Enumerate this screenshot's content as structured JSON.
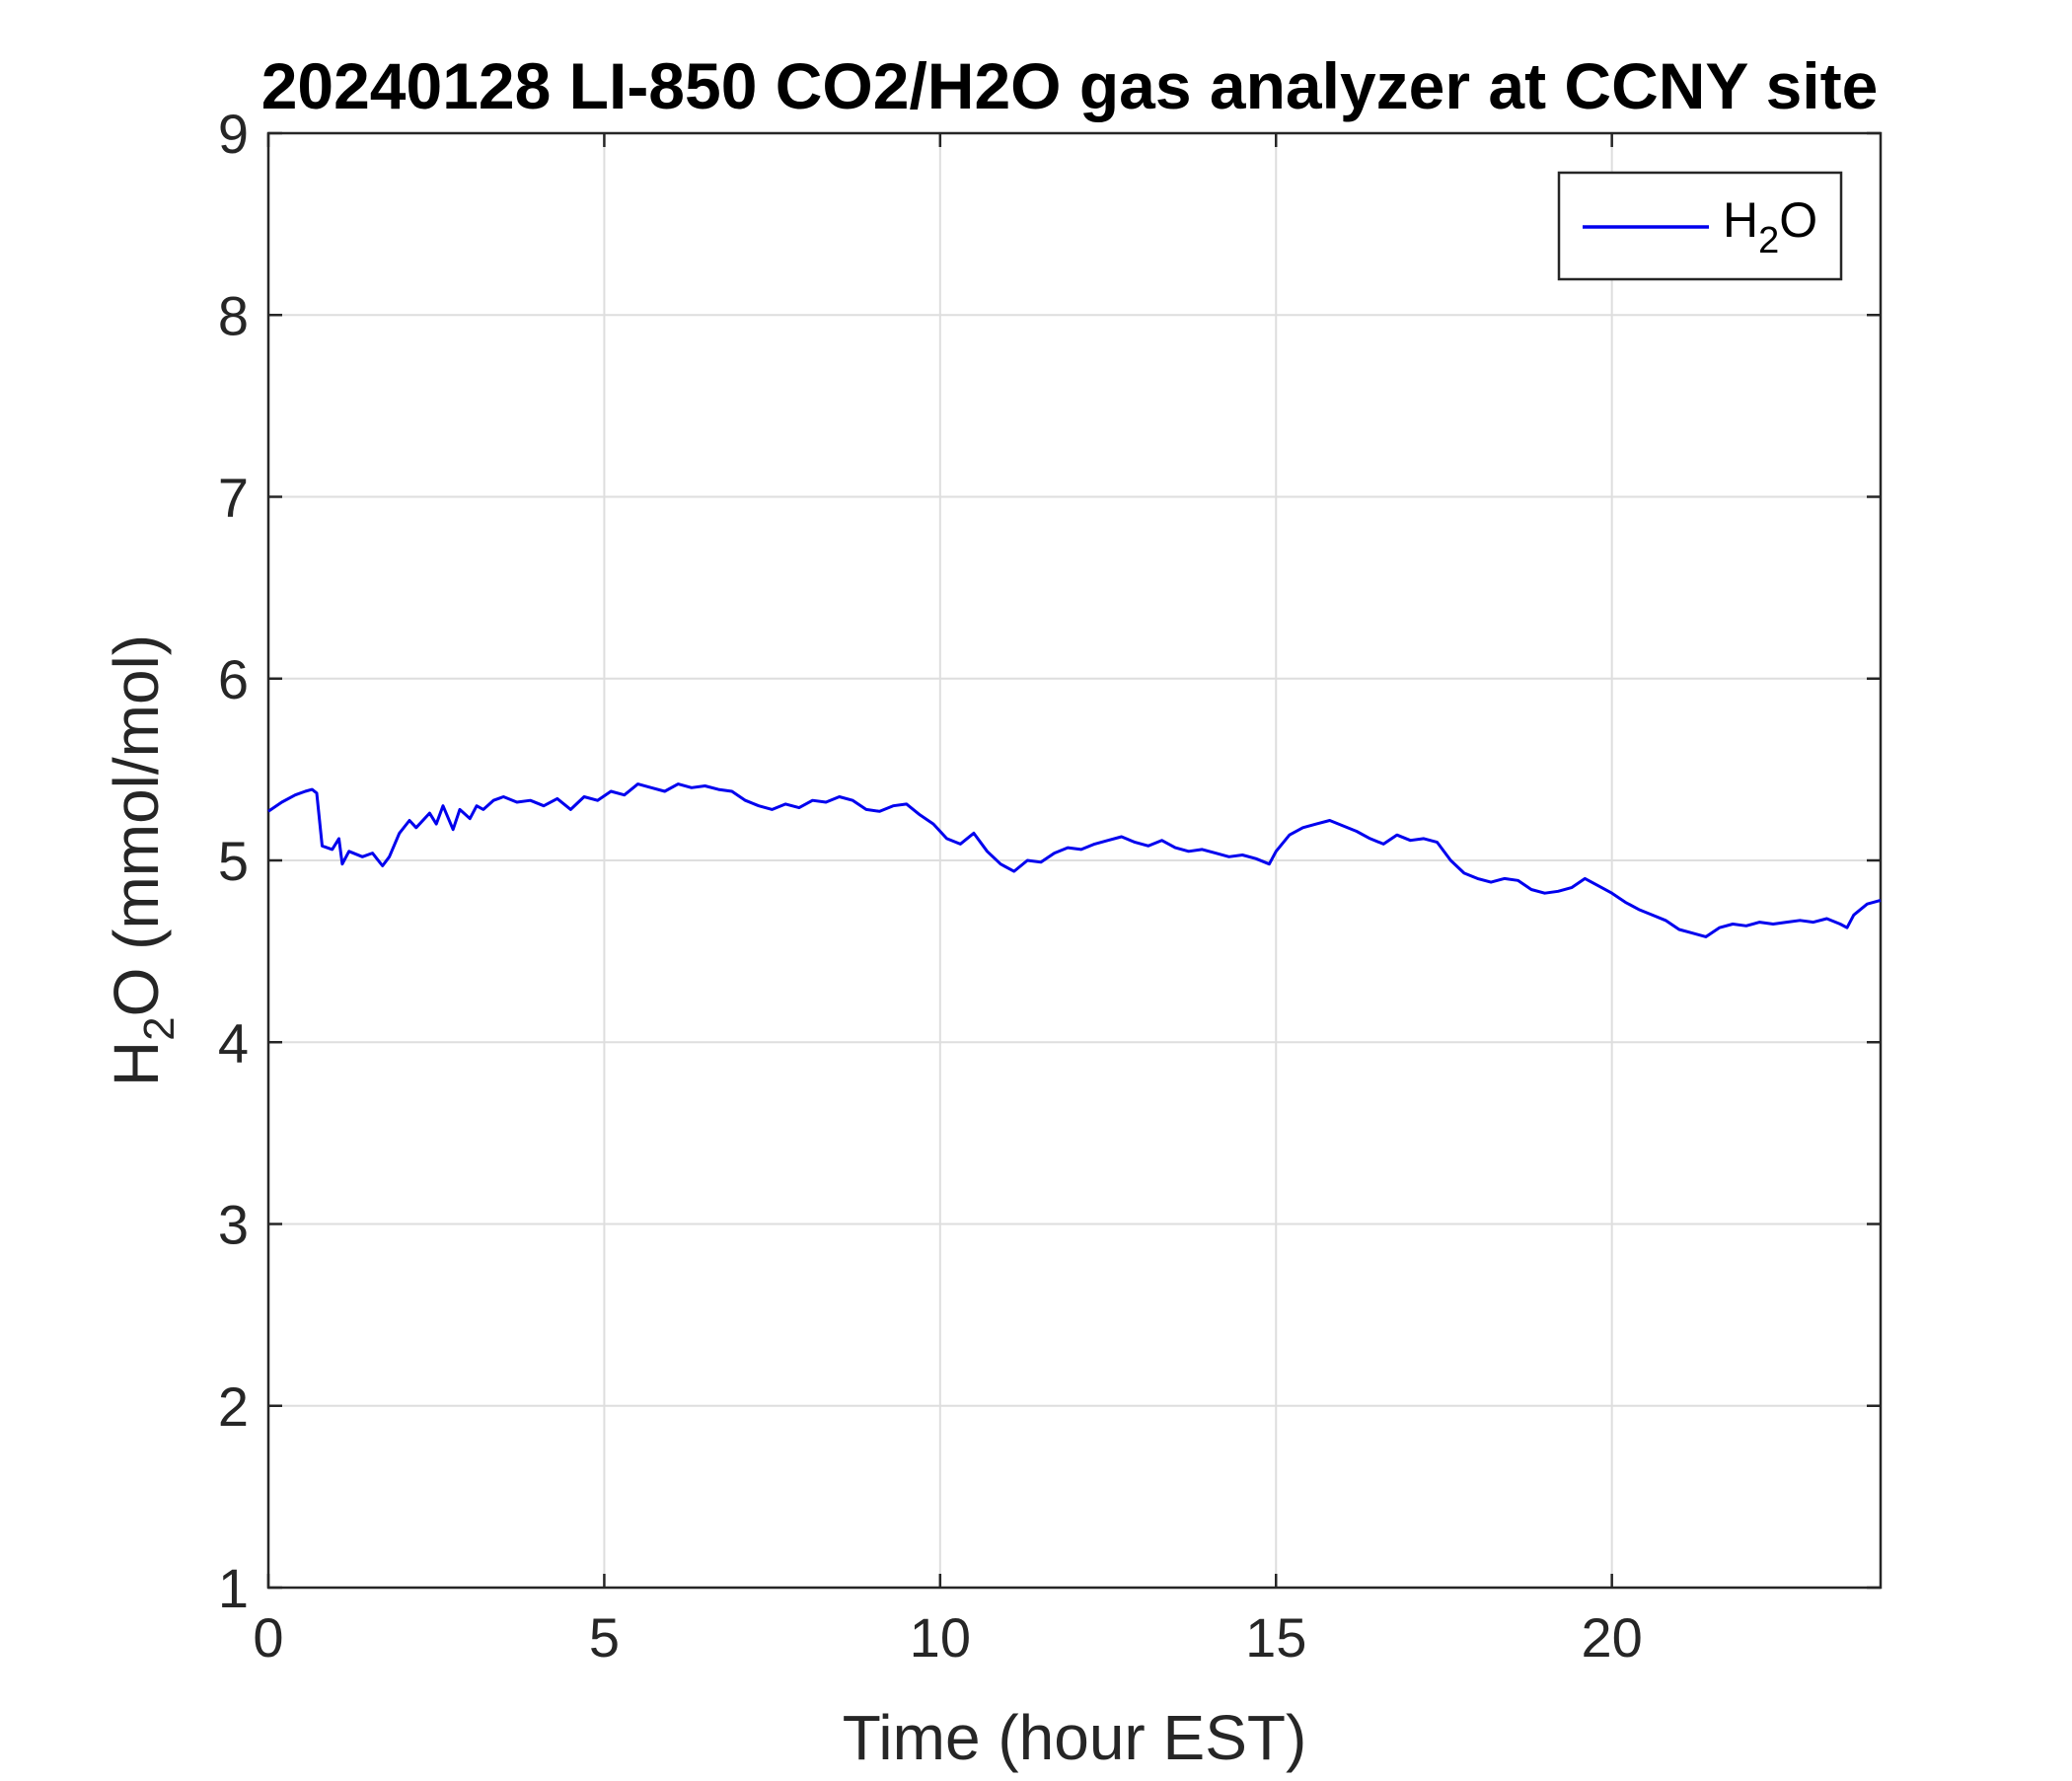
{
  "chart_data": {
    "type": "line",
    "title": "20240128 LI-850 CO2/H2O gas analyzer at CCNY site",
    "xlabel": "Time (hour EST)",
    "ylabel": {
      "base": "H",
      "subscript": "2",
      "rest": "O (mmol/mol)"
    },
    "xlim": [
      0,
      24
    ],
    "ylim": [
      1,
      9
    ],
    "xticks": [
      0,
      5,
      10,
      15,
      20
    ],
    "yticks": [
      1,
      2,
      3,
      4,
      5,
      6,
      7,
      8,
      9
    ],
    "grid": true,
    "legend_position": "top-right",
    "series": [
      {
        "name": {
          "base": "H",
          "subscript": "2",
          "rest": "O"
        },
        "color": "#0000ee",
        "x": [
          0,
          0.2,
          0.4,
          0.55,
          0.65,
          0.72,
          0.8,
          0.95,
          1.05,
          1.1,
          1.2,
          1.4,
          1.55,
          1.7,
          1.8,
          1.95,
          2.1,
          2.2,
          2.4,
          2.5,
          2.6,
          2.75,
          2.85,
          3.0,
          3.1,
          3.2,
          3.35,
          3.5,
          3.7,
          3.9,
          4.1,
          4.3,
          4.5,
          4.7,
          4.9,
          5.1,
          5.3,
          5.5,
          5.7,
          5.9,
          6.1,
          6.3,
          6.5,
          6.7,
          6.9,
          7.1,
          7.3,
          7.5,
          7.7,
          7.9,
          8.1,
          8.3,
          8.5,
          8.7,
          8.9,
          9.1,
          9.3,
          9.5,
          9.7,
          9.9,
          10.1,
          10.3,
          10.5,
          10.7,
          10.9,
          11.1,
          11.3,
          11.5,
          11.7,
          11.9,
          12.1,
          12.3,
          12.5,
          12.7,
          12.9,
          13.1,
          13.3,
          13.5,
          13.7,
          13.9,
          14.1,
          14.3,
          14.5,
          14.7,
          14.9,
          15.0,
          15.2,
          15.4,
          15.6,
          15.8,
          16.0,
          16.2,
          16.4,
          16.6,
          16.8,
          17.0,
          17.2,
          17.4,
          17.6,
          17.8,
          18.0,
          18.2,
          18.4,
          18.6,
          18.8,
          19.0,
          19.2,
          19.4,
          19.6,
          19.8,
          20.0,
          20.2,
          20.4,
          20.6,
          20.8,
          21.0,
          21.2,
          21.4,
          21.6,
          21.8,
          22.0,
          22.2,
          22.4,
          22.6,
          22.8,
          23.0,
          23.2,
          23.4,
          23.5,
          23.6,
          23.8,
          24.0
        ],
        "y": [
          5.27,
          5.32,
          5.36,
          5.38,
          5.39,
          5.37,
          5.08,
          5.06,
          5.12,
          4.98,
          5.05,
          5.02,
          5.04,
          4.97,
          5.02,
          5.15,
          5.22,
          5.18,
          5.26,
          5.2,
          5.3,
          5.17,
          5.28,
          5.23,
          5.3,
          5.28,
          5.33,
          5.35,
          5.32,
          5.33,
          5.3,
          5.34,
          5.28,
          5.35,
          5.33,
          5.38,
          5.36,
          5.42,
          5.4,
          5.38,
          5.42,
          5.4,
          5.41,
          5.39,
          5.38,
          5.33,
          5.3,
          5.28,
          5.31,
          5.29,
          5.33,
          5.32,
          5.35,
          5.33,
          5.28,
          5.27,
          5.3,
          5.31,
          5.25,
          5.2,
          5.12,
          5.09,
          5.15,
          5.05,
          4.98,
          4.94,
          5.0,
          4.99,
          5.04,
          5.07,
          5.06,
          5.09,
          5.11,
          5.13,
          5.1,
          5.08,
          5.11,
          5.07,
          5.05,
          5.06,
          5.04,
          5.02,
          5.03,
          5.01,
          4.98,
          5.05,
          5.14,
          5.18,
          5.2,
          5.22,
          5.19,
          5.16,
          5.12,
          5.09,
          5.14,
          5.11,
          5.12,
          5.1,
          5.0,
          4.93,
          4.9,
          4.88,
          4.9,
          4.89,
          4.84,
          4.82,
          4.83,
          4.85,
          4.9,
          4.86,
          4.82,
          4.77,
          4.73,
          4.7,
          4.67,
          4.62,
          4.6,
          4.58,
          4.63,
          4.65,
          4.64,
          4.66,
          4.65,
          4.66,
          4.67,
          4.66,
          4.68,
          4.65,
          4.63,
          4.7,
          4.76,
          4.78
        ]
      }
    ]
  }
}
